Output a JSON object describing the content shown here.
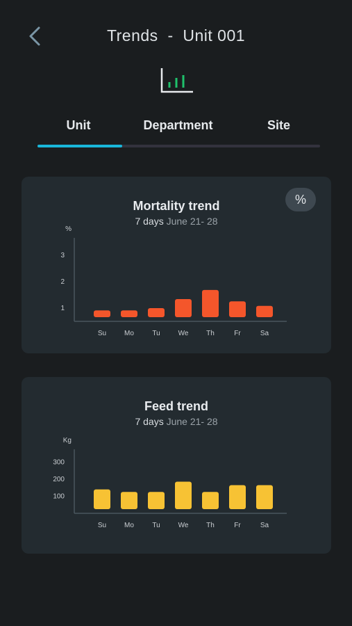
{
  "header": {
    "title": "Trends  -  Unit 001",
    "back_icon": "chevron-left-icon",
    "trend_icon": "bar-chart-icon"
  },
  "tabs": [
    {
      "label": "Unit",
      "active": true
    },
    {
      "label": "Department",
      "active": false
    },
    {
      "label": "Site",
      "active": false
    }
  ],
  "colors": {
    "background": "#1a1d1f",
    "card": "#232b30",
    "accent": "#19b6d9",
    "mortality_bar": "#f4562b",
    "feed_bar": "#f7c234",
    "icon_green": "#1fc16b"
  },
  "mortality": {
    "title": "Mortality trend",
    "period": "7 days",
    "range": "June 21- 28",
    "unit_button": "%"
  },
  "feed": {
    "title": "Feed trend",
    "period": "7 days",
    "range": "June 21- 28"
  },
  "chart_data": [
    {
      "type": "bar",
      "title": "Mortality trend",
      "ylabel": "%",
      "categories": [
        "Su",
        "Mo",
        "Tu",
        "We",
        "Th",
        "Fr",
        "Sa"
      ],
      "values": [
        0.3,
        0.3,
        0.4,
        0.8,
        1.2,
        0.7,
        0.5
      ],
      "ylim": [
        0.5,
        3.5
      ],
      "yticks": [
        1,
        2,
        3
      ],
      "bar_color": "#f4562b",
      "grid": false
    },
    {
      "type": "bar",
      "title": "Feed trend",
      "ylabel": "Kg",
      "categories": [
        "Su",
        "Mo",
        "Tu",
        "We",
        "Th",
        "Fr",
        "Sa"
      ],
      "values": [
        140,
        125,
        125,
        185,
        125,
        165,
        165
      ],
      "ylim": [
        0,
        350
      ],
      "yticks": [
        100,
        200,
        300
      ],
      "bar_color": "#f7c234",
      "grid": false
    }
  ]
}
